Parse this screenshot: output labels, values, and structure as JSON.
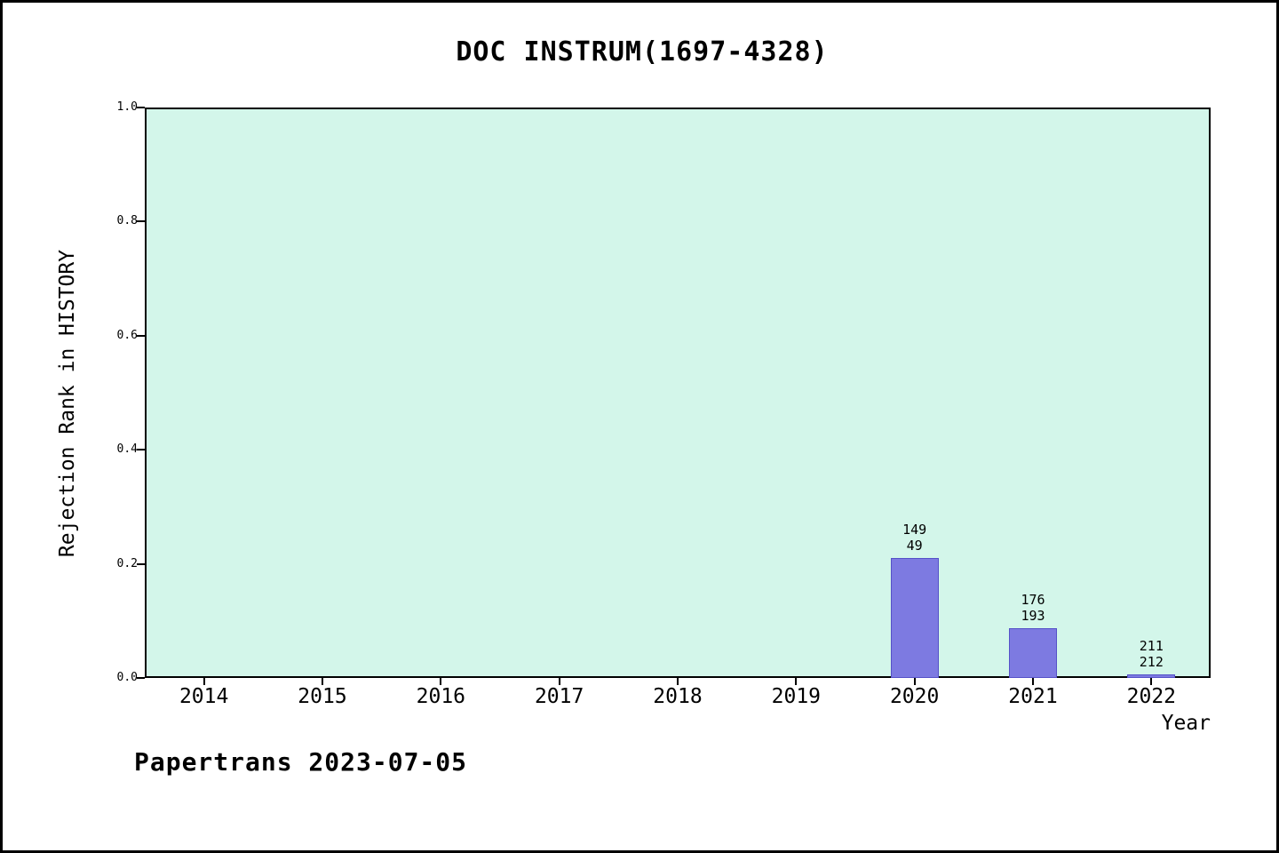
{
  "title": "DOC INSTRUM(1697-4328)",
  "footer": "Papertrans 2023-07-05",
  "chart_data": {
    "type": "bar",
    "title": "DOC INSTRUM(1697-4328)",
    "xlabel": "Year",
    "ylabel": "Rejection Rank in HISTORY",
    "ylim": [
      0.0,
      1.0
    ],
    "yticks": [
      0.0,
      0.2,
      0.4,
      0.6,
      0.8,
      1.0
    ],
    "grid": false,
    "legend": false,
    "categories": [
      "2014",
      "2015",
      "2016",
      "2017",
      "2018",
      "2019",
      "2020",
      "2021",
      "2022"
    ],
    "values": [
      0,
      0,
      0,
      0,
      0,
      0,
      0.21,
      0.088,
      0.006
    ],
    "bar_labels": [
      null,
      null,
      null,
      null,
      null,
      null,
      [
        "149",
        "49"
      ],
      [
        "176",
        "193"
      ],
      [
        "211",
        "212"
      ]
    ],
    "colors": {
      "plot_background": "#d3f6ea",
      "bar_fill": "#7d7ae1",
      "bar_edge": "#5551c8",
      "axis": "#000000"
    }
  }
}
